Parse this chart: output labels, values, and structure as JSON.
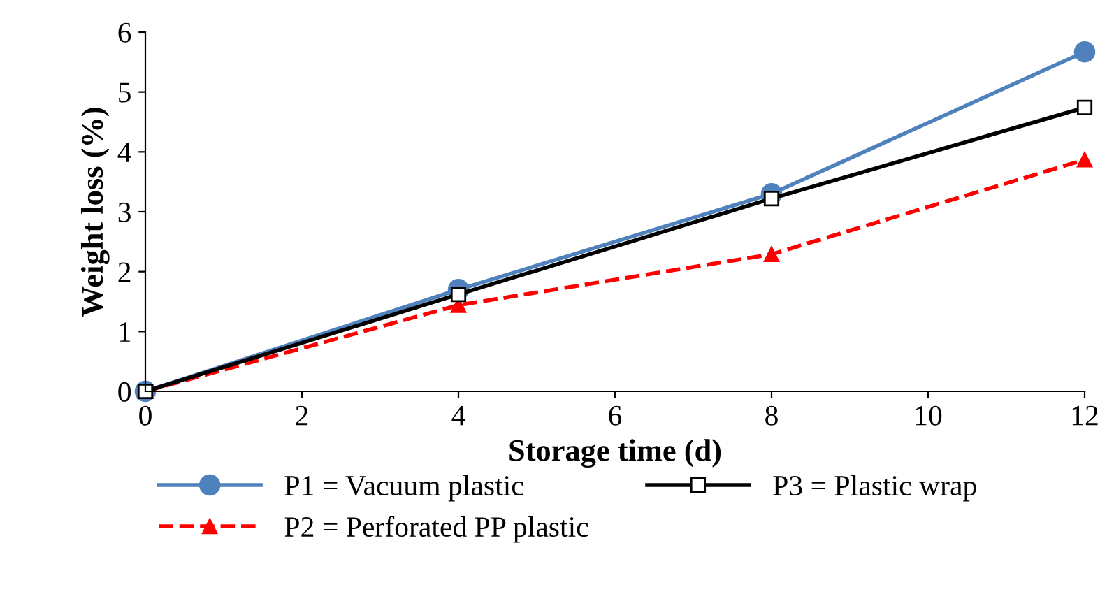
{
  "chart_data": {
    "type": "line",
    "xlabel": "Storage time (d)",
    "ylabel": "Weight loss (%)",
    "x": [
      0,
      4,
      8,
      12
    ],
    "xlim": [
      0,
      12
    ],
    "xticks": [
      0,
      2,
      4,
      6,
      8,
      10,
      12
    ],
    "ylim": [
      0,
      6
    ],
    "yticks": [
      0,
      1,
      2,
      3,
      4,
      5,
      6
    ],
    "grid": false,
    "legend": "bottom",
    "series": [
      {
        "name": "P1 = Vacuum plastic",
        "color": "#4f81bd",
        "values": [
          0,
          1.7,
          3.3,
          5.67
        ],
        "marker": "circle",
        "line_style": "solid"
      },
      {
        "name": "P2 = Perforated PP plastic",
        "color": "#ff0000",
        "values": [
          0,
          1.44,
          2.29,
          3.87
        ],
        "marker": "triangle",
        "line_style": "dashed"
      },
      {
        "name": "P3 = Plastic wrap",
        "color": "#000000",
        "values": [
          0,
          1.62,
          3.22,
          4.74
        ],
        "marker": "square",
        "line_style": "solid"
      }
    ]
  }
}
